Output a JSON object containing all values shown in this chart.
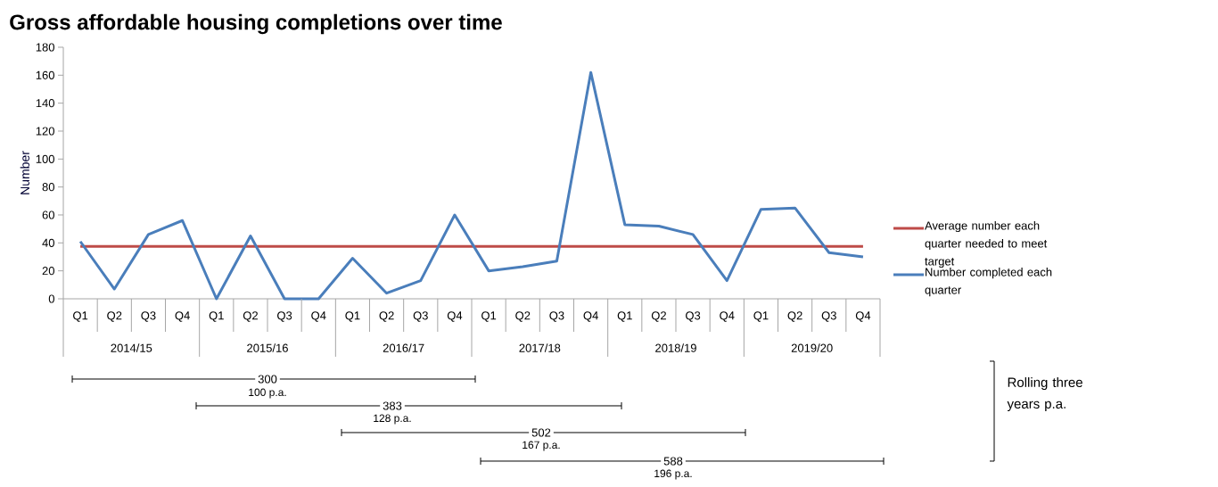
{
  "chart_data": {
    "type": "line",
    "title": "Gross affordable housing completions over time",
    "ylabel": "Number",
    "categories": [
      "Q1",
      "Q2",
      "Q3",
      "Q4",
      "Q1",
      "Q2",
      "Q3",
      "Q4",
      "Q1",
      "Q2",
      "Q3",
      "Q4",
      "Q1",
      "Q2",
      "Q3",
      "Q4",
      "Q1",
      "Q2",
      "Q3",
      "Q4",
      "Q1",
      "Q2",
      "Q3",
      "Q4"
    ],
    "series": [
      {
        "name": "Average number each quarter needed to meet target",
        "color": "#be4b48",
        "values": [
          37.5,
          37.5,
          37.5,
          37.5,
          37.5,
          37.5,
          37.5,
          37.5,
          37.5,
          37.5,
          37.5,
          37.5,
          37.5,
          37.5,
          37.5,
          37.5,
          37.5,
          37.5,
          37.5,
          37.5,
          37.5,
          37.5,
          37.5,
          37.5
        ]
      },
      {
        "name": "Number completed each quarter",
        "color": "#4a7ebb",
        "values": [
          41,
          7,
          46,
          56,
          0,
          45,
          0,
          0,
          29,
          4,
          13,
          60,
          20,
          23,
          27,
          162,
          53,
          52,
          46,
          13,
          64,
          65,
          33,
          30
        ]
      }
    ],
    "ylim": [
      0,
      180
    ],
    "yticks": [
      0,
      20,
      40,
      60,
      80,
      100,
      120,
      140,
      160,
      180
    ],
    "legend": "right",
    "marker": "none",
    "line_style": "solid",
    "annotations": [
      "2014/15",
      "2015/16",
      "2016/17",
      "2017/18",
      "2018/19",
      "2019/20",
      "300",
      "100 p.a.",
      "383",
      "128 p.a.",
      "502",
      "167 p.a.",
      "588",
      "196 p.a.",
      "Rolling three years p.a."
    ]
  }
}
